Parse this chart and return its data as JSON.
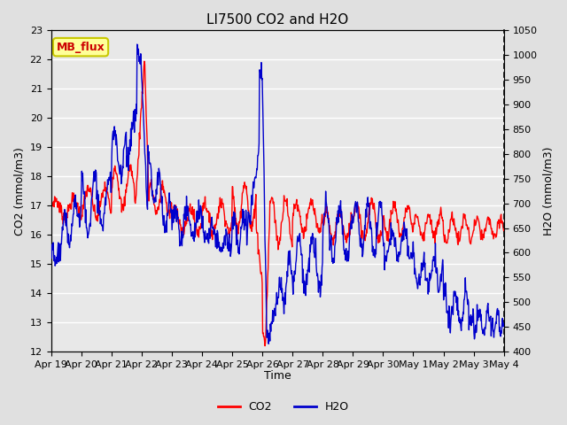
{
  "title": "LI7500 CO2 and H2O",
  "xlabel": "Time",
  "ylabel_left": "CO2 (mmol/m3)",
  "ylabel_right": "H2O (mmol/m3)",
  "ylim_left": [
    12.0,
    23.0
  ],
  "ylim_right": [
    400,
    1050
  ],
  "yticks_left": [
    12.0,
    13.0,
    14.0,
    15.0,
    16.0,
    17.0,
    18.0,
    19.0,
    20.0,
    21.0,
    22.0,
    23.0
  ],
  "yticks_right": [
    400,
    450,
    500,
    550,
    600,
    650,
    700,
    750,
    800,
    850,
    900,
    950,
    1000,
    1050
  ],
  "xtick_labels": [
    "Apr 19",
    "Apr 20",
    "Apr 21",
    "Apr 22",
    "Apr 23",
    "Apr 24",
    "Apr 25",
    "Apr 26",
    "Apr 27",
    "Apr 28",
    "Apr 29",
    "Apr 30",
    "May 1",
    "May 2",
    "May 3",
    "May 4"
  ],
  "co2_color": "#ff0000",
  "h2o_color": "#0000cc",
  "fig_bg_color": "#e0e0e0",
  "plot_bg_color": "#e8e8e8",
  "grid_color": "#ffffff",
  "annotation_text": "MB_flux",
  "annotation_bg": "#ffff99",
  "annotation_border": "#c8c800",
  "title_fontsize": 11,
  "axis_label_fontsize": 9,
  "tick_fontsize": 8,
  "line_width": 1.0,
  "n_days": 15.0,
  "n_points": 1000
}
